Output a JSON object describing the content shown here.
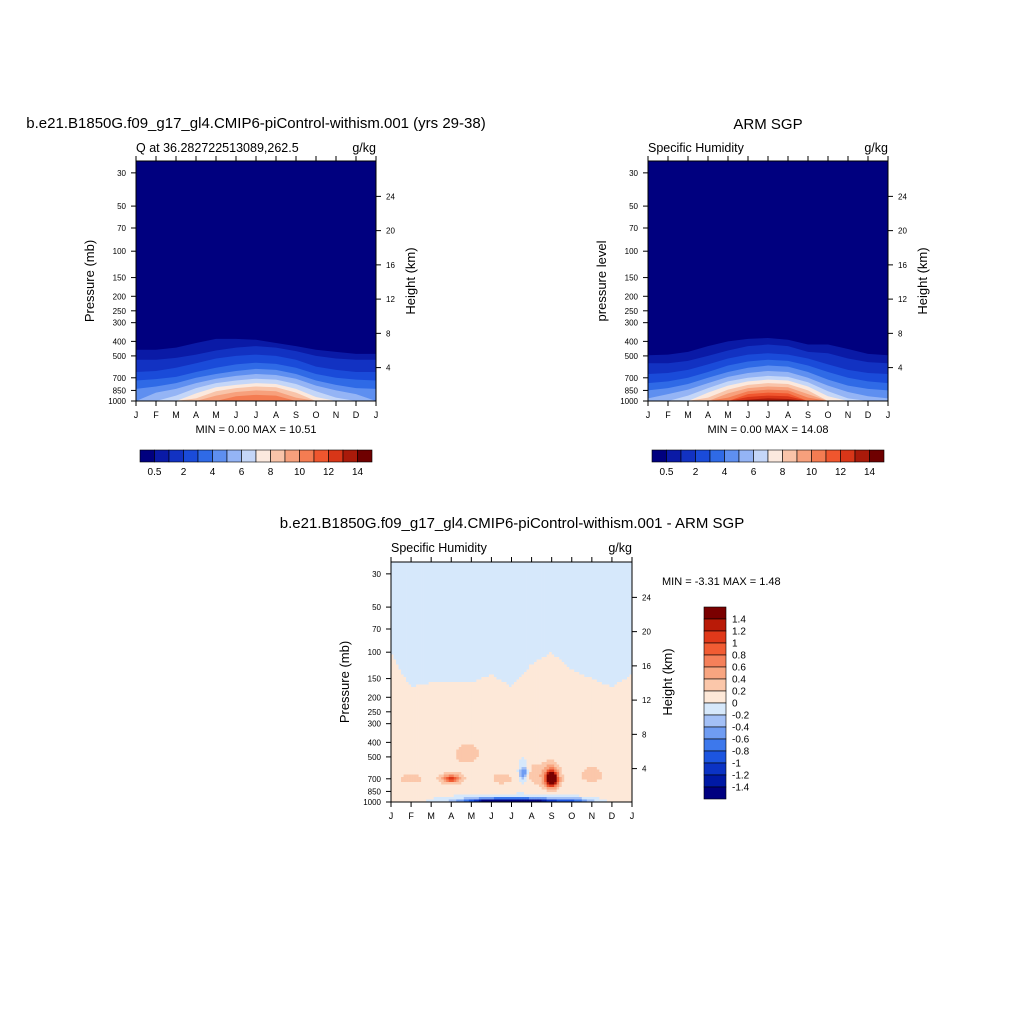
{
  "chart_data": [
    {
      "type": "heatmap",
      "title": "b.e21.B1850G.f09_g17_gl4.CMIP6-piControl-withism.001 (yrs 29-38)",
      "left_string": "Q at 36.282722513089,262.5",
      "right_string": "g/kg",
      "ylabel": "Pressure (mb)",
      "ylabel_right": "Height (km)",
      "x_ticks": [
        "J",
        "F",
        "M",
        "A",
        "M",
        "J",
        "J",
        "A",
        "S",
        "O",
        "N",
        "D",
        "J"
      ],
      "y_ticks": [
        30,
        50,
        70,
        100,
        150,
        200,
        250,
        300,
        400,
        500,
        700,
        850,
        1000
      ],
      "y_ticks_right": [
        24,
        20,
        16,
        12,
        8,
        4
      ],
      "ylim": [
        1000,
        25
      ],
      "minmax_text": "MIN =   0.00 MAX =  10.51",
      "colorbar_labels": [
        "0.5",
        "2",
        "4",
        "6",
        "8",
        "10",
        "12",
        "14"
      ],
      "contour_levels": [
        0.5,
        1,
        2,
        3,
        4,
        5,
        6,
        7,
        8,
        9,
        10,
        11,
        12,
        13,
        14
      ],
      "colors": [
        "#00007f",
        "#0a1aa6",
        "#1232c2",
        "#1a4bd9",
        "#2f6ae6",
        "#5e8ff0",
        "#94b4f5",
        "#c4d6f8",
        "#fbe9de",
        "#f9c4a9",
        "#f7a07c",
        "#f47c52",
        "#f0562e",
        "#d83618",
        "#a91a0a",
        "#6f0000"
      ],
      "levels": [
        {
          "v": 0.5,
          "top": [
            455,
            455,
            440,
            410,
            385,
            385,
            390,
            410,
            430,
            455,
            470,
            485,
            485
          ]
        },
        {
          "v": 1,
          "top": [
            530,
            530,
            515,
            490,
            460,
            440,
            430,
            440,
            465,
            500,
            520,
            530,
            530
          ]
        },
        {
          "v": 2,
          "top": [
            640,
            630,
            600,
            560,
            520,
            500,
            490,
            500,
            530,
            590,
            620,
            640,
            640
          ]
        },
        {
          "v": 3,
          "top": [
            730,
            715,
            690,
            640,
            600,
            570,
            555,
            565,
            600,
            660,
            700,
            720,
            730
          ]
        },
        {
          "v": 4,
          "top": [
            830,
            800,
            760,
            700,
            660,
            630,
            610,
            620,
            660,
            730,
            780,
            820,
            830
          ]
        },
        {
          "v": 5,
          "top": [
            1000,
            880,
            830,
            760,
            710,
            680,
            660,
            670,
            710,
            790,
            850,
            900,
            1000
          ]
        },
        {
          "v": 6,
          "top": [
            1000,
            1000,
            920,
            820,
            760,
            730,
            710,
            720,
            770,
            860,
            950,
            1000,
            1000
          ]
        },
        {
          "v": 7,
          "top": [
            1000,
            1000,
            1000,
            890,
            810,
            780,
            760,
            770,
            830,
            940,
            1000,
            1000,
            1000
          ]
        },
        {
          "v": 8,
          "top": [
            1000,
            1000,
            1000,
            960,
            860,
            820,
            800,
            810,
            880,
            1000,
            1000,
            1000,
            1000
          ]
        },
        {
          "v": 9,
          "top": [
            1000,
            1000,
            1000,
            1000,
            920,
            870,
            850,
            860,
            950,
            1000,
            1000,
            1000,
            1000
          ]
        },
        {
          "v": 10,
          "top": [
            1000,
            1000,
            1000,
            1000,
            1000,
            930,
            910,
            920,
            1000,
            1000,
            1000,
            1000,
            1000
          ]
        }
      ]
    },
    {
      "type": "heatmap",
      "title": "ARM SGP",
      "left_string": "Specific Humidity",
      "right_string": "g/kg",
      "ylabel": "pressure level",
      "ylabel_right": "Height (km)",
      "x_ticks": [
        "J",
        "F",
        "M",
        "A",
        "M",
        "J",
        "J",
        "A",
        "S",
        "O",
        "N",
        "D",
        "J"
      ],
      "y_ticks": [
        30,
        50,
        70,
        100,
        150,
        200,
        250,
        300,
        400,
        500,
        700,
        850,
        1000
      ],
      "y_ticks_right": [
        24,
        20,
        16,
        12,
        8,
        4
      ],
      "ylim": [
        1000,
        25
      ],
      "minmax_text": "MIN =   0.00 MAX =  14.08",
      "colorbar_labels": [
        "0.5",
        "2",
        "4",
        "6",
        "8",
        "10",
        "12",
        "14"
      ],
      "contour_levels": [
        0.5,
        1,
        2,
        3,
        4,
        5,
        6,
        7,
        8,
        9,
        10,
        11,
        12,
        13,
        14
      ],
      "colors": [
        "#00007f",
        "#0a1aa6",
        "#1232c2",
        "#1a4bd9",
        "#2f6ae6",
        "#5e8ff0",
        "#94b4f5",
        "#c4d6f8",
        "#fbe9de",
        "#f9c4a9",
        "#f7a07c",
        "#f47c52",
        "#f0562e",
        "#d83618",
        "#a91a0a",
        "#6f0000"
      ],
      "levels": [
        {
          "v": 0.5,
          "top": [
            495,
            490,
            470,
            430,
            400,
            385,
            380,
            390,
            420,
            420,
            450,
            485,
            495
          ]
        },
        {
          "v": 1,
          "top": [
            560,
            560,
            540,
            500,
            460,
            430,
            420,
            430,
            470,
            480,
            520,
            550,
            560
          ]
        },
        {
          "v": 2,
          "top": [
            660,
            650,
            620,
            570,
            520,
            490,
            480,
            490,
            520,
            570,
            620,
            650,
            660
          ]
        },
        {
          "v": 3,
          "top": [
            760,
            740,
            700,
            640,
            580,
            545,
            530,
            540,
            580,
            640,
            700,
            740,
            760
          ]
        },
        {
          "v": 4,
          "top": [
            850,
            820,
            770,
            700,
            640,
            600,
            580,
            590,
            640,
            720,
            790,
            830,
            850
          ]
        },
        {
          "v": 5,
          "top": [
            960,
            900,
            840,
            760,
            690,
            650,
            630,
            640,
            700,
            790,
            870,
            930,
            960
          ]
        },
        {
          "v": 6,
          "top": [
            1000,
            1000,
            920,
            820,
            740,
            700,
            680,
            690,
            750,
            860,
            960,
            1000,
            1000
          ]
        },
        {
          "v": 7,
          "top": [
            1000,
            1000,
            1000,
            880,
            790,
            740,
            720,
            730,
            800,
            930,
            1000,
            1000,
            1000
          ]
        },
        {
          "v": 8,
          "top": [
            1000,
            1000,
            1000,
            950,
            840,
            780,
            760,
            770,
            850,
            1000,
            1000,
            1000,
            1000
          ]
        },
        {
          "v": 9,
          "top": [
            1000,
            1000,
            1000,
            1000,
            890,
            820,
            800,
            810,
            900,
            1000,
            1000,
            1000,
            1000
          ]
        },
        {
          "v": 10,
          "top": [
            1000,
            1000,
            1000,
            1000,
            950,
            860,
            840,
            850,
            950,
            1000,
            1000,
            1000,
            1000
          ]
        },
        {
          "v": 11,
          "top": [
            1000,
            1000,
            1000,
            1000,
            1000,
            900,
            880,
            890,
            1000,
            1000,
            1000,
            1000,
            1000
          ]
        },
        {
          "v": 12,
          "top": [
            1000,
            1000,
            1000,
            1000,
            1000,
            940,
            920,
            930,
            1000,
            1000,
            1000,
            1000,
            1000
          ]
        },
        {
          "v": 13,
          "top": [
            1000,
            1000,
            1000,
            1000,
            1000,
            980,
            960,
            970,
            1000,
            1000,
            1000,
            1000,
            1000
          ]
        }
      ]
    },
    {
      "type": "heatmap",
      "title": "b.e21.B1850G.f09_g17_gl4.CMIP6-piControl-withism.001 - ARM SGP",
      "left_string": "Specific Humidity",
      "right_string": "g/kg",
      "ylabel": "Pressure (mb)",
      "ylabel_right": "Height (km)",
      "x_ticks": [
        "J",
        "F",
        "M",
        "A",
        "M",
        "J",
        "J",
        "A",
        "S",
        "O",
        "N",
        "D",
        "J"
      ],
      "y_ticks": [
        30,
        50,
        70,
        100,
        150,
        200,
        250,
        300,
        400,
        500,
        700,
        850,
        1000
      ],
      "y_ticks_right": [
        24,
        20,
        16,
        12,
        8,
        4
      ],
      "ylim": [
        1000,
        25
      ],
      "minmax_text": "MIN =  -3.31 MAX =   1.48",
      "colorbar_labels": [
        "1.4",
        "1.2",
        "1",
        "0.8",
        "0.6",
        "0.4",
        "0.2",
        "0",
        "-0.2",
        "-0.4",
        "-0.6",
        "-0.8",
        "-1",
        "-1.2",
        "-1.4"
      ],
      "colors": [
        "#000080",
        "#0019a5",
        "#0b33c4",
        "#1c55e0",
        "#3d78ec",
        "#6f9cf2",
        "#a3c0f6",
        "#d6e8fb",
        "#fde8d8",
        "#fbc7aa",
        "#f8a580",
        "#f5805a",
        "#f15c33",
        "#e0391a",
        "#b91a07",
        "#7a0000"
      ],
      "background_value": 0.05,
      "low_region": {
        "value": 0.1,
        "top": [
          100,
          170,
          160,
          160,
          160,
          140,
          170,
          120,
          100,
          130,
          150,
          170,
          140
        ]
      },
      "blobs": [
        {
          "x": 3.8,
          "p": 480,
          "rx": 0.8,
          "ry": 95,
          "v": 0.25
        },
        {
          "x": 7.0,
          "p": 650,
          "rx": 0.8,
          "ry": 120,
          "v": 0.3
        },
        {
          "x": 3.0,
          "p": 700,
          "rx": 0.7,
          "ry": 70,
          "v": 0.4
        },
        {
          "x": 3.0,
          "p": 700,
          "rx": 0.35,
          "ry": 35,
          "v": 0.6
        },
        {
          "x": 1.0,
          "p": 700,
          "rx": 0.6,
          "ry": 60,
          "v": 0.3
        },
        {
          "x": 10.0,
          "p": 660,
          "rx": 0.6,
          "ry": 90,
          "v": 0.3
        },
        {
          "x": 5.5,
          "p": 700,
          "rx": 0.5,
          "ry": 60,
          "v": 0.3
        },
        {
          "x": 8.0,
          "p": 700,
          "rx": 0.45,
          "ry": 130,
          "v": 0.6
        },
        {
          "x": 8.0,
          "p": 700,
          "rx": 0.3,
          "ry": 90,
          "v": 1.0
        },
        {
          "x": 8.0,
          "p": 700,
          "rx": 0.2,
          "ry": 55,
          "v": 1.3
        },
        {
          "x": 6.6,
          "p": 640,
          "rx": 0.35,
          "ry": 130,
          "v": -0.3
        },
        {
          "x": 6.6,
          "p": 640,
          "rx": 0.18,
          "ry": 60,
          "v": -0.6
        },
        {
          "x": 6.0,
          "p": 985,
          "rx": 2.6,
          "ry": 75,
          "v": -0.4
        },
        {
          "x": 6.0,
          "p": 990,
          "rx": 2.2,
          "ry": 50,
          "v": -0.9
        },
        {
          "x": 6.0,
          "p": 995,
          "rx": 1.8,
          "ry": 30,
          "v": -1.4
        },
        {
          "x": 9.0,
          "p": 990,
          "rx": 1.0,
          "ry": 45,
          "v": -0.6
        }
      ]
    }
  ]
}
